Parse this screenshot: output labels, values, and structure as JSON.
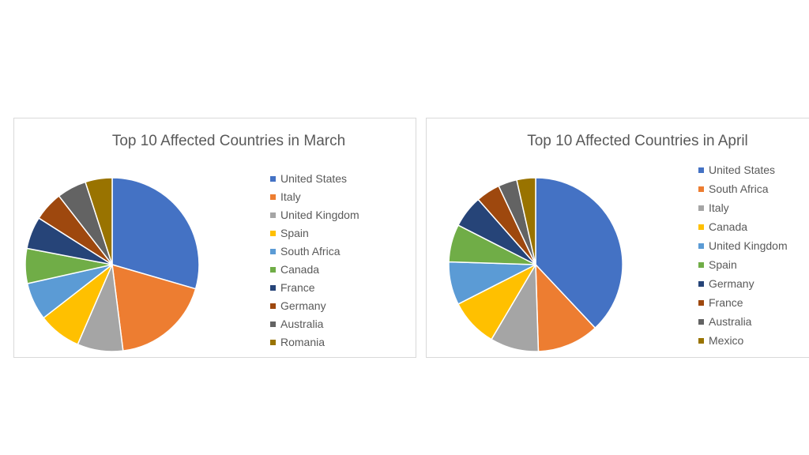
{
  "chart_data": [
    {
      "type": "pie",
      "title": "Top 10 Affected Countries in March",
      "categories": [
        "United States",
        "Italy",
        "United Kingdom",
        "Spain",
        "South Africa",
        "Canada",
        "France",
        "Germany",
        "Australia",
        "Romania"
      ],
      "values": [
        29.5,
        18.5,
        8.5,
        8.0,
        7.0,
        6.5,
        6.0,
        5.5,
        5.5,
        5.0
      ],
      "colors": [
        "#4472C4",
        "#ED7D31",
        "#A5A5A5",
        "#FFC000",
        "#5B9BD5",
        "#70AD47",
        "#264478",
        "#9E480E",
        "#636363",
        "#997300"
      ],
      "legend": "right"
    },
    {
      "type": "pie",
      "title": "Top 10 Affected Countries in April",
      "categories": [
        "United States",
        "South Africa",
        "Italy",
        "Canada",
        "United Kingdom",
        "Spain",
        "Germany",
        "France",
        "Australia",
        "Mexico"
      ],
      "values": [
        38.0,
        11.5,
        9.0,
        9.0,
        8.0,
        7.0,
        6.0,
        4.5,
        3.5,
        3.5
      ],
      "colors": [
        "#4472C4",
        "#ED7D31",
        "#A5A5A5",
        "#FFC000",
        "#5B9BD5",
        "#70AD47",
        "#264478",
        "#9E480E",
        "#636363",
        "#997300"
      ],
      "legend": "right"
    }
  ]
}
